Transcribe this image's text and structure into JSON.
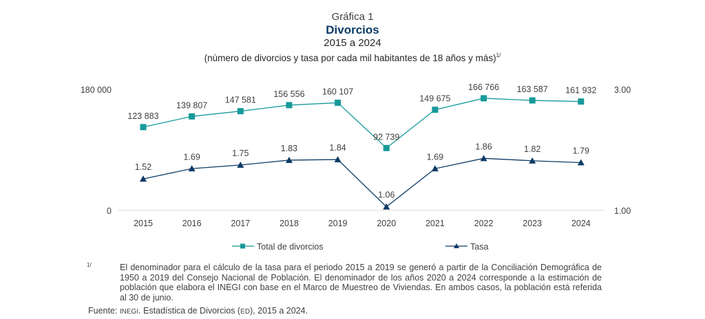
{
  "header": {
    "label": "Gráfica 1",
    "title": "Divorcios",
    "period": "2015 a 2024",
    "subtitle": "(número de divorcios y tasa por cada mil habitantes de 18 años y más)",
    "subtitle_note": "1/"
  },
  "colors": {
    "total": "#17999a",
    "tasa": "#0d3b66",
    "axis": "#d9d9d9",
    "text": "#404040"
  },
  "chart_data": {
    "type": "line",
    "title": "Divorcios",
    "subtitle": "2015 a 2024 (número de divorcios y tasa por cada mil habitantes de 18 años y más)",
    "categories": [
      "2015",
      "2016",
      "2017",
      "2018",
      "2019",
      "2020",
      "2021",
      "2022",
      "2023",
      "2024"
    ],
    "series": [
      {
        "name": "Total de divorcios",
        "axis": "left",
        "marker": "square",
        "values": [
          123883,
          139807,
          147581,
          156556,
          160107,
          92739,
          149675,
          166766,
          163587,
          161932
        ],
        "labels": [
          "123 883",
          "139 807",
          "147 581",
          "156 556",
          "160 107",
          "92 739",
          "149 675",
          "166 766",
          "163 587",
          "161 932"
        ]
      },
      {
        "name": "Tasa",
        "axis": "right",
        "marker": "triangle",
        "values": [
          1.52,
          1.69,
          1.75,
          1.83,
          1.84,
          1.06,
          1.69,
          1.86,
          1.82,
          1.79
        ],
        "labels": [
          "1.52",
          "1.69",
          "1.75",
          "1.83",
          "1.84",
          "1.06",
          "1.69",
          "1.86",
          "1.82",
          "1.79"
        ]
      }
    ],
    "left_axis": {
      "range": [
        0,
        180000
      ],
      "ticks": [
        "0",
        "180 000"
      ]
    },
    "right_axis": {
      "range": [
        1.0,
        3.0
      ],
      "ticks": [
        "1.00",
        "3.00"
      ]
    },
    "grid": false,
    "legend": "bottom",
    "xlabel": "",
    "ylabel": ""
  },
  "footer": {
    "note_mark": "1/",
    "note": "El denominador para el cálculo de la tasa para el periodo 2015 a 2019 se generó a partir de la Conciliación Demográfica de 1950 a 2019 del Consejo Nacional de Población. El denominador de los años 2020 a 2024 corresponde a la estimación de población que elabora el INEGI con base en el Marco de Muestreo de Viviendas. En ambos casos, la población está referida al 30 de junio.",
    "source_label": "Fuente:",
    "source_org": "INEGI",
    "source_text": ". Estadística de Divorcios (",
    "source_abbr": "ED",
    "source_end": "), 2015 a 2024."
  }
}
